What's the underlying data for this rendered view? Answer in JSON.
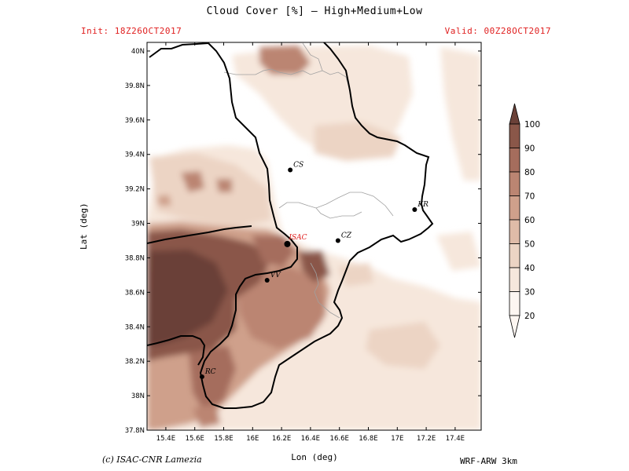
{
  "title": "Cloud Cover [%] — High+Medium+Low",
  "init": "Init: 18Z26OCT2017",
  "valid": "Valid: 00Z28OCT2017",
  "credit": "(c) ISAC-CNR Lamezia",
  "model": "WRF-ARW 3km",
  "axes": {
    "xlabel": "Lon (deg)",
    "ylabel": "Lat (deg)",
    "x_ticks": [
      "15.4E",
      "15.6E",
      "15.8E",
      "16E",
      "16.2E",
      "16.4E",
      "16.6E",
      "16.8E",
      "17E",
      "17.2E",
      "17.4E"
    ],
    "y_ticks": [
      "37.8N",
      "38N",
      "38.2N",
      "38.4N",
      "38.6N",
      "38.8N",
      "39N",
      "39.2N",
      "39.4N",
      "39.6N",
      "39.8N",
      "40N"
    ],
    "xlim": [
      15.27,
      17.58
    ],
    "ylim": [
      37.8,
      40.05
    ]
  },
  "colorbar": {
    "levels": [
      "20",
      "30",
      "40",
      "50",
      "60",
      "70",
      "80",
      "90",
      "100"
    ],
    "colors": [
      "#fdf6f1",
      "#f6e7dc",
      "#ecd4c4",
      "#dfbba8",
      "#cfa08b",
      "#bb8572",
      "#a56d5d",
      "#8a5749",
      "#6b4138"
    ]
  },
  "cities": [
    {
      "name": "CS",
      "lon": 16.26,
      "lat": 39.31,
      "color": "#000000"
    },
    {
      "name": "KR",
      "lon": 17.12,
      "lat": 39.08,
      "color": "#000000"
    },
    {
      "name": "ISAC",
      "lon": 16.24,
      "lat": 38.88,
      "color": "#e02020"
    },
    {
      "name": "CZ",
      "lon": 16.59,
      "lat": 38.9,
      "color": "#000000"
    },
    {
      "name": "VV",
      "lon": 16.1,
      "lat": 38.67,
      "color": "#000000"
    },
    {
      "name": "RC",
      "lon": 15.65,
      "lat": 38.11,
      "color": "#000000"
    }
  ]
}
